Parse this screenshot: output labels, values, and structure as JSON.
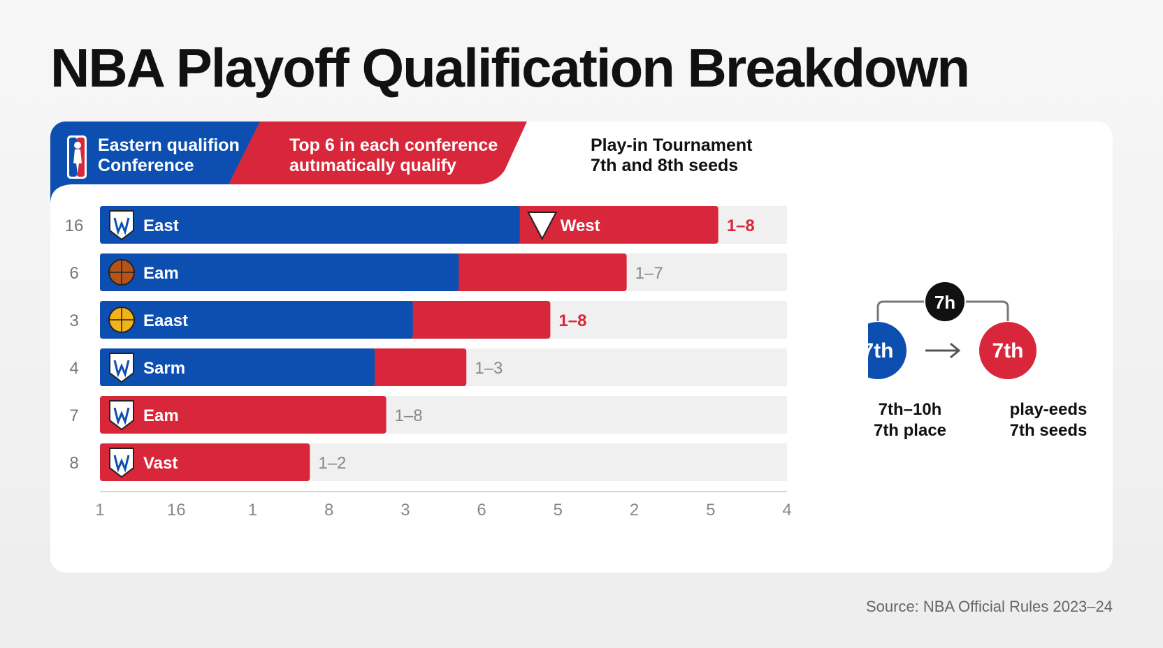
{
  "title": "NBA Playoff Qualification Breakdown",
  "header": {
    "east_line1": "Eastern qualifion",
    "east_line2": "Conference",
    "top6_line1": "Top 6 in each conference",
    "top6_line2": "autımatically qualify",
    "playin_line1": "Play-in Tournament",
    "playin_line2": "7th and 8th seeds"
  },
  "colors": {
    "blue": "#0d4fb0",
    "red": "#d8273a",
    "track": "#f0f0f1",
    "dark": "#111111"
  },
  "chart_data": {
    "type": "bar",
    "orientation": "horizontal",
    "stacked": true,
    "row_numbers": [
      "16",
      "6",
      "3",
      "4",
      "7",
      "8"
    ],
    "row_names": [
      "East",
      "Eam",
      "Eaast",
      "Sarm",
      "Eam",
      "Vast"
    ],
    "row_icons": [
      "w-shield-icon",
      "basketball-icon",
      "basketball-icon",
      "pennant-icon",
      "nuggets-shield-icon",
      "shield-icon"
    ],
    "series": [
      {
        "values": [
          5.5,
          4.7,
          4.1,
          3.6,
          0,
          0
        ]
      },
      {
        "values": [
          2.6,
          2.2,
          1.8,
          1.2,
          3.75,
          2.75
        ]
      }
    ],
    "value_labels": [
      "1–8",
      "1–7",
      "1–8",
      "1–3",
      "1–8",
      "1–2"
    ],
    "value_label_red": [
      true,
      false,
      true,
      false,
      false,
      false
    ],
    "west_label": "West",
    "x_tick_labels": [
      "1",
      "16",
      "1",
      "8",
      "3",
      "6",
      "5",
      "2",
      "5",
      "4"
    ],
    "xlim": [
      0,
      9
    ]
  },
  "bracket": {
    "top_badge": "7h",
    "left_circle": "7th",
    "right_circle": "7th",
    "left_line1": "7th–10h",
    "left_line2": "7th place",
    "right_line1": "play-eeds",
    "right_line2": "7th seeds"
  },
  "source": "Source: NBA Official Rules 2023–24"
}
